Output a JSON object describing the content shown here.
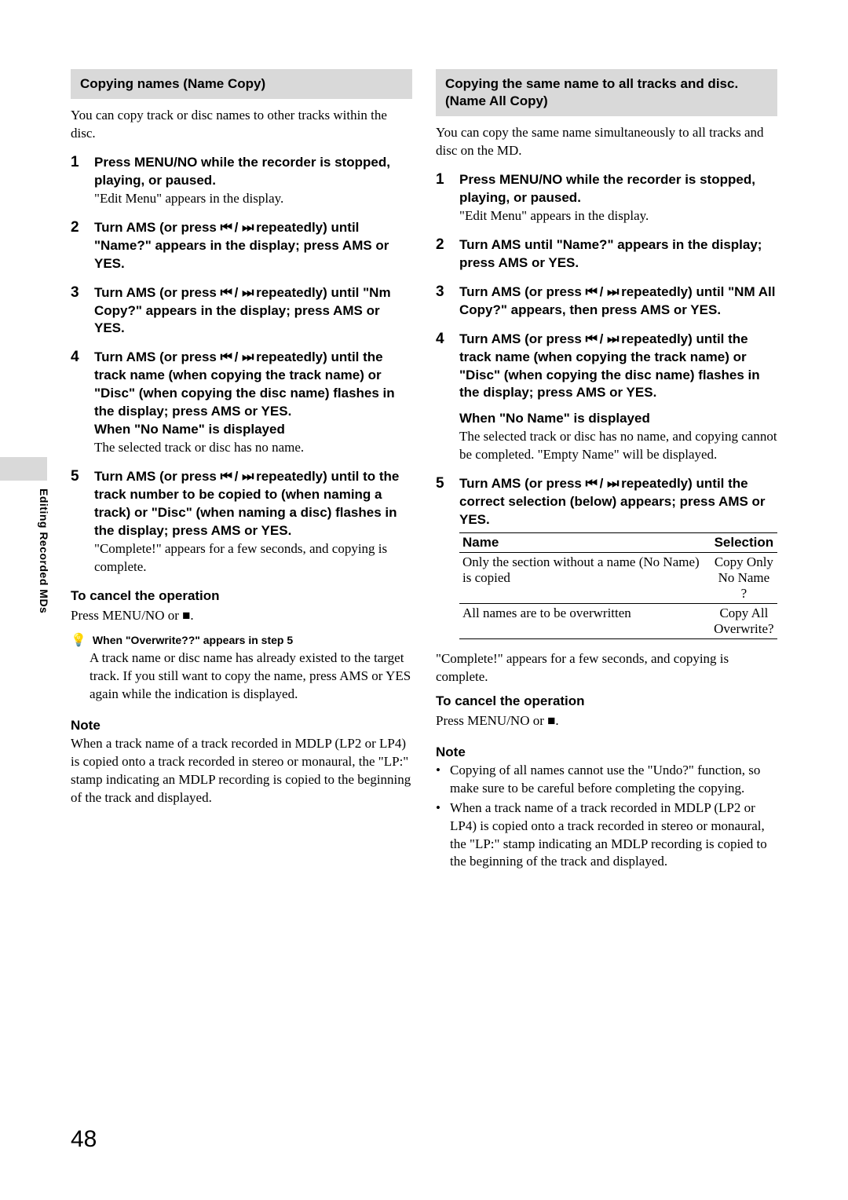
{
  "side_tab": "Editing Recorded MDs",
  "page_number": "48",
  "skip_prev": "⏮",
  "skip_next": "⏭",
  "stop": "■",
  "tip_glyph": "💡",
  "left": {
    "header": "Copying names (Name Copy)",
    "intro": "You can copy track or disc names to other tracks within the disc.",
    "s1_bold": "Press MENU/NO while the recorder is stopped, playing, or paused.",
    "s1_plain": "\"Edit Menu\" appears in the display.",
    "s2_a": "Turn AMS (or press ",
    "s2_b": " repeatedly) until \"Name?\" appears in the display; press AMS or YES.",
    "s3_a": "Turn AMS (or press ",
    "s3_b": " repeatedly) until \"Nm Copy?\" appears in the display; press AMS or YES.",
    "s4_a": "Turn AMS (or press ",
    "s4_b": " repeatedly) until the track name (when copying the track name) or \"Disc\" (when copying the disc name) flashes in the display; press AMS or YES.",
    "s4_sub": "When \"No Name\" is displayed",
    "s4_plain": "The selected track or disc has no name.",
    "s5_a": "Turn AMS (or press ",
    "s5_b": " repeatedly) until to the track number to be copied to (when naming a track)  or \"Disc\"  (when naming a disc) flashes in the display; press AMS or YES.",
    "s5_plain": "\"Complete!\" appears for a few seconds, and copying is complete.",
    "cancel_head": "To cancel the operation",
    "cancel_body_a": "Press MENU/NO or ",
    "cancel_body_b": ".",
    "tip_title": "When \"Overwrite??\" appears in step 5",
    "tip_body": "A track name or disc name has already existed to the target track. If you still want to copy the name, press AMS or YES again while the indication is displayed.",
    "note_head": "Note",
    "note_body": "When a track name of a track recorded in MDLP (LP2 or LP4) is copied onto a track recorded in stereo or monaural, the \"LP:\" stamp indicating an MDLP recording is copied to the beginning of the track and displayed."
  },
  "right": {
    "header": "Copying the same name to all tracks and disc. (Name All Copy)",
    "intro": "You can copy the same name simultaneously to all tracks and disc on the MD.",
    "s1_bold": "Press MENU/NO while the recorder is stopped, playing, or paused.",
    "s1_plain": "\"Edit Menu\" appears in the display.",
    "s2": "Turn AMS until \"Name?\" appears in the display; press AMS or YES.",
    "s3_a": "Turn AMS (or press ",
    "s3_b": " repeatedly) until \"NM All Copy?\" appears, then press AMS or YES.",
    "s4_a": "Turn AMS (or press ",
    "s4_b": " repeatedly) until the track name (when copying the track name) or \"Disc\" (when copying the disc name) flashes in the display; press AMS or YES.",
    "s4_sub": "When \"No Name\" is displayed",
    "s4_plain": "The selected track or disc has no name, and copying cannot be completed. \"Empty Name\" will be displayed.",
    "s5_a": "Turn AMS (or press ",
    "s5_b": " repeatedly) until the correct selection (below) appears; press AMS or YES.",
    "table": {
      "h1": "Name",
      "h2": "Selection",
      "r1c1": "Only the section without a name (No Name) is copied",
      "r1c2a": "Copy Only",
      "r1c2b": "No Name ?",
      "r2c1": "All names are to be overwritten",
      "r2c2a": "Copy All",
      "r2c2b": "Overwrite?"
    },
    "after_table": "\"Complete!\" appears for a few seconds, and copying is complete.",
    "cancel_head": "To cancel the operation",
    "cancel_body_a": "Press MENU/NO or ",
    "cancel_body_b": ".",
    "note_head": "Note",
    "note1": "Copying of all names cannot use the \"Undo?\" function, so make sure to be careful before completing the copying.",
    "note2": "When a track name of a track recorded in MDLP (LP2 or LP4) is copied onto a track recorded in stereo or monaural, the \"LP:\" stamp indicating an MDLP recording is copied to the beginning of the track and displayed."
  }
}
